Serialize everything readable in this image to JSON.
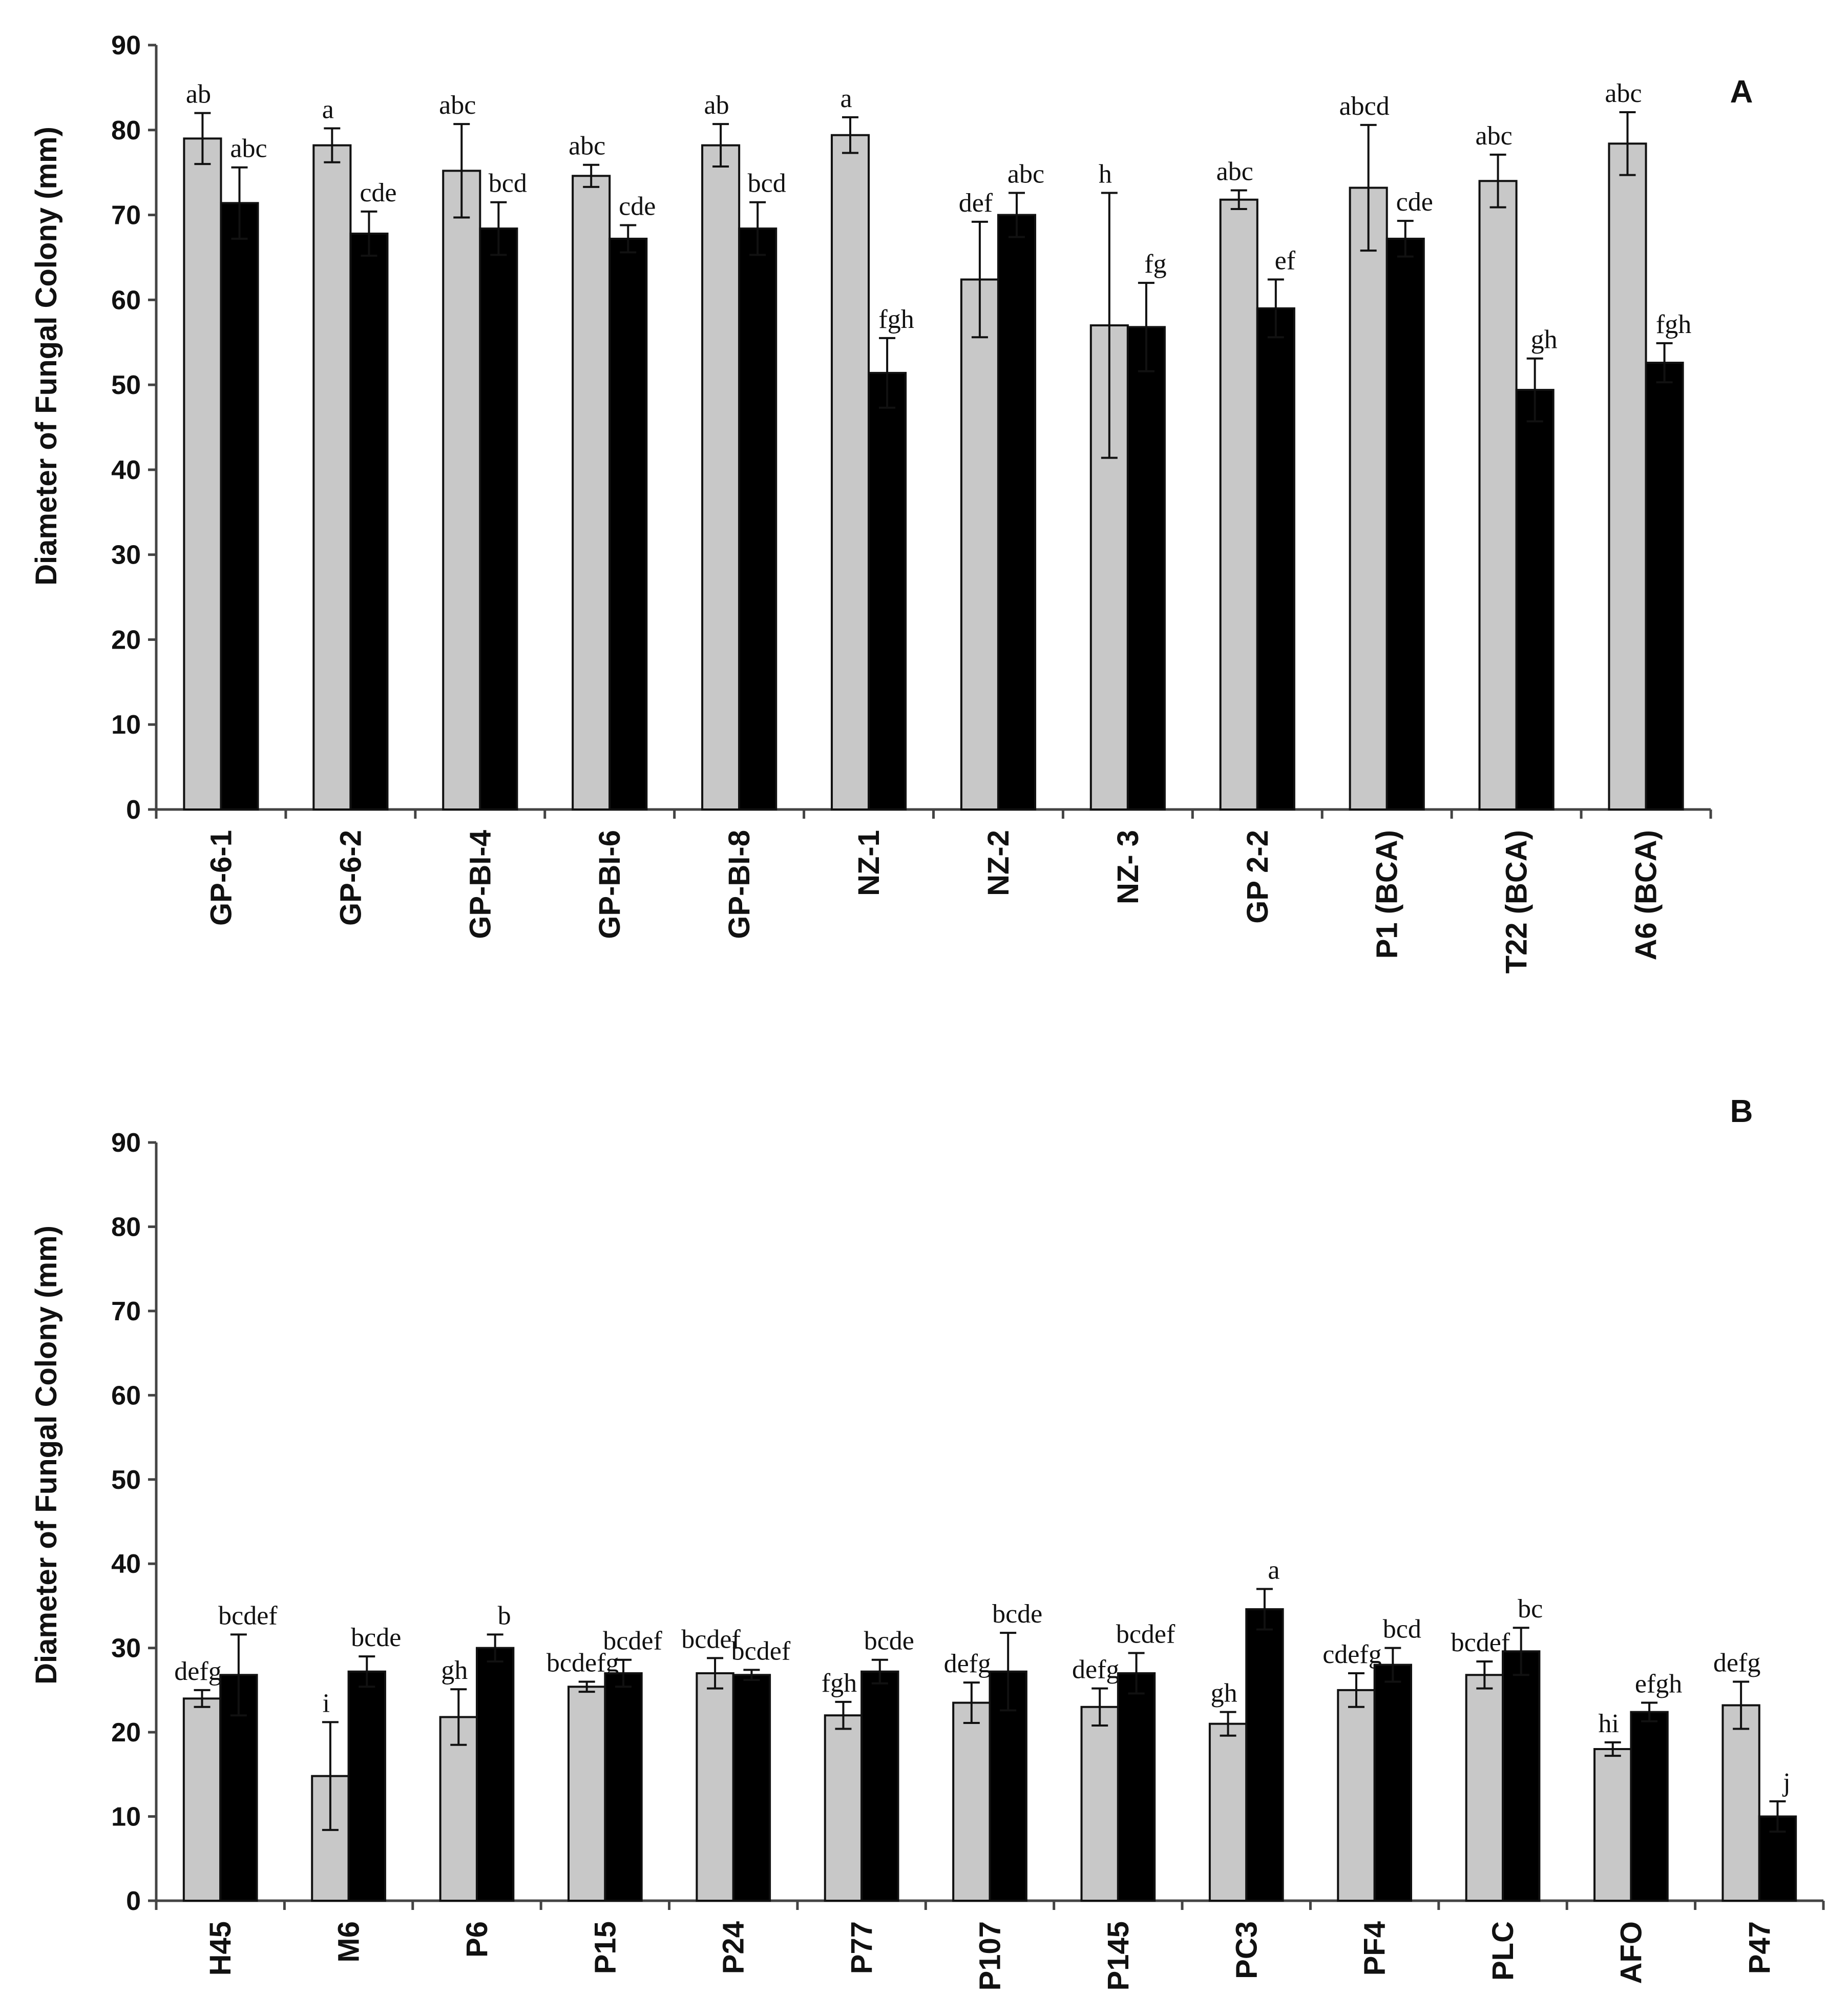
{
  "colors": {
    "series1": "#c8c8c8",
    "series2": "#000000",
    "axis": "#444444",
    "text": "#111111"
  },
  "chart_data": [
    {
      "type": "bar",
      "panel_label": "A",
      "ylabel": "Diameter of Fungal Colony (mm)",
      "ylim": [
        0,
        90
      ],
      "yticks": [
        "0",
        "10",
        "20",
        "30",
        "40",
        "50",
        "60",
        "70",
        "80",
        "90"
      ],
      "categories": [
        "GP-6-1",
        "GP-6-2",
        "GP-BI-4",
        "GP-BI-6",
        "GP-BI-8",
        "NZ-1",
        "NZ-2",
        "NZ- 3",
        "GP 2-2",
        "P1 (BCA)",
        "T22 (BCA)",
        "A6 (BCA)"
      ],
      "series": [
        {
          "name": "grey",
          "values": [
            79,
            78.2,
            75.2,
            74.6,
            78.2,
            79.4,
            62.4,
            57,
            71.8,
            73.2,
            74,
            78.4
          ],
          "errors": [
            3,
            2,
            5.5,
            1.3,
            2.5,
            2.1,
            6.8,
            15.6,
            1.1,
            7.4,
            3.1,
            3.7
          ]
        },
        {
          "name": "black",
          "values": [
            71.4,
            67.8,
            68.4,
            67.2,
            68.4,
            51.4,
            70,
            56.8,
            59,
            67.2,
            49.4,
            52.6
          ],
          "errors": [
            4.2,
            2.6,
            3.1,
            1.6,
            3.1,
            4.1,
            2.6,
            5.2,
            3.4,
            2.1,
            3.7,
            2.3
          ]
        }
      ],
      "letters": [
        [
          "ab",
          "abc"
        ],
        [
          "a",
          "cde"
        ],
        [
          "abc",
          "bcd"
        ],
        [
          "abc",
          "cde"
        ],
        [
          "ab",
          "bcd"
        ],
        [
          "a",
          "fgh"
        ],
        [
          "def",
          "abc"
        ],
        [
          "h",
          "fg"
        ],
        [
          "abc",
          "ef"
        ],
        [
          "abcd",
          "cde"
        ],
        [
          "abc",
          "gh"
        ],
        [
          "abc",
          "fgh"
        ]
      ]
    },
    {
      "type": "bar",
      "panel_label": "B",
      "ylabel": "Diameter of Fungal Colony (mm)",
      "ylim": [
        0,
        90
      ],
      "yticks": [
        "0",
        "10",
        "20",
        "30",
        "40",
        "50",
        "60",
        "70",
        "80",
        "90"
      ],
      "categories": [
        "H45",
        "M6",
        "P6",
        "P15",
        "P24",
        "P77",
        "P107",
        "P145",
        "PC3",
        "PF4",
        "PLC",
        "AFO",
        "P47"
      ],
      "series": [
        {
          "name": "grey",
          "values": [
            24,
            14.8,
            21.8,
            25.4,
            27,
            22,
            23.5,
            23,
            21,
            25,
            26.8,
            18,
            23.2
          ],
          "errors": [
            1,
            6.4,
            3.3,
            0.6,
            1.8,
            1.6,
            2.4,
            2.2,
            1.4,
            2,
            1.6,
            0.8,
            2.8
          ]
        },
        {
          "name": "black",
          "values": [
            26.8,
            27.2,
            30,
            27,
            26.8,
            27.2,
            27.2,
            27,
            34.6,
            28,
            29.6,
            22.4,
            10
          ],
          "errors": [
            4.8,
            1.8,
            1.6,
            1.6,
            0.6,
            1.4,
            4.6,
            2.4,
            2.4,
            2,
            2.8,
            1.1,
            1.8
          ]
        }
      ],
      "letters": [
        [
          "defg",
          "bcdef"
        ],
        [
          "i",
          "bcde"
        ],
        [
          "gh",
          "b"
        ],
        [
          "bcdefg",
          "bcdef"
        ],
        [
          "bcdef",
          "bcdef"
        ],
        [
          "fgh",
          "bcde"
        ],
        [
          "defg",
          "bcde"
        ],
        [
          "defg",
          "bcdef"
        ],
        [
          "gh",
          "a"
        ],
        [
          "cdefg",
          "bcd"
        ],
        [
          "bcdef",
          "bc"
        ],
        [
          "hi",
          "efgh"
        ],
        [
          "defg",
          "j"
        ]
      ]
    }
  ]
}
